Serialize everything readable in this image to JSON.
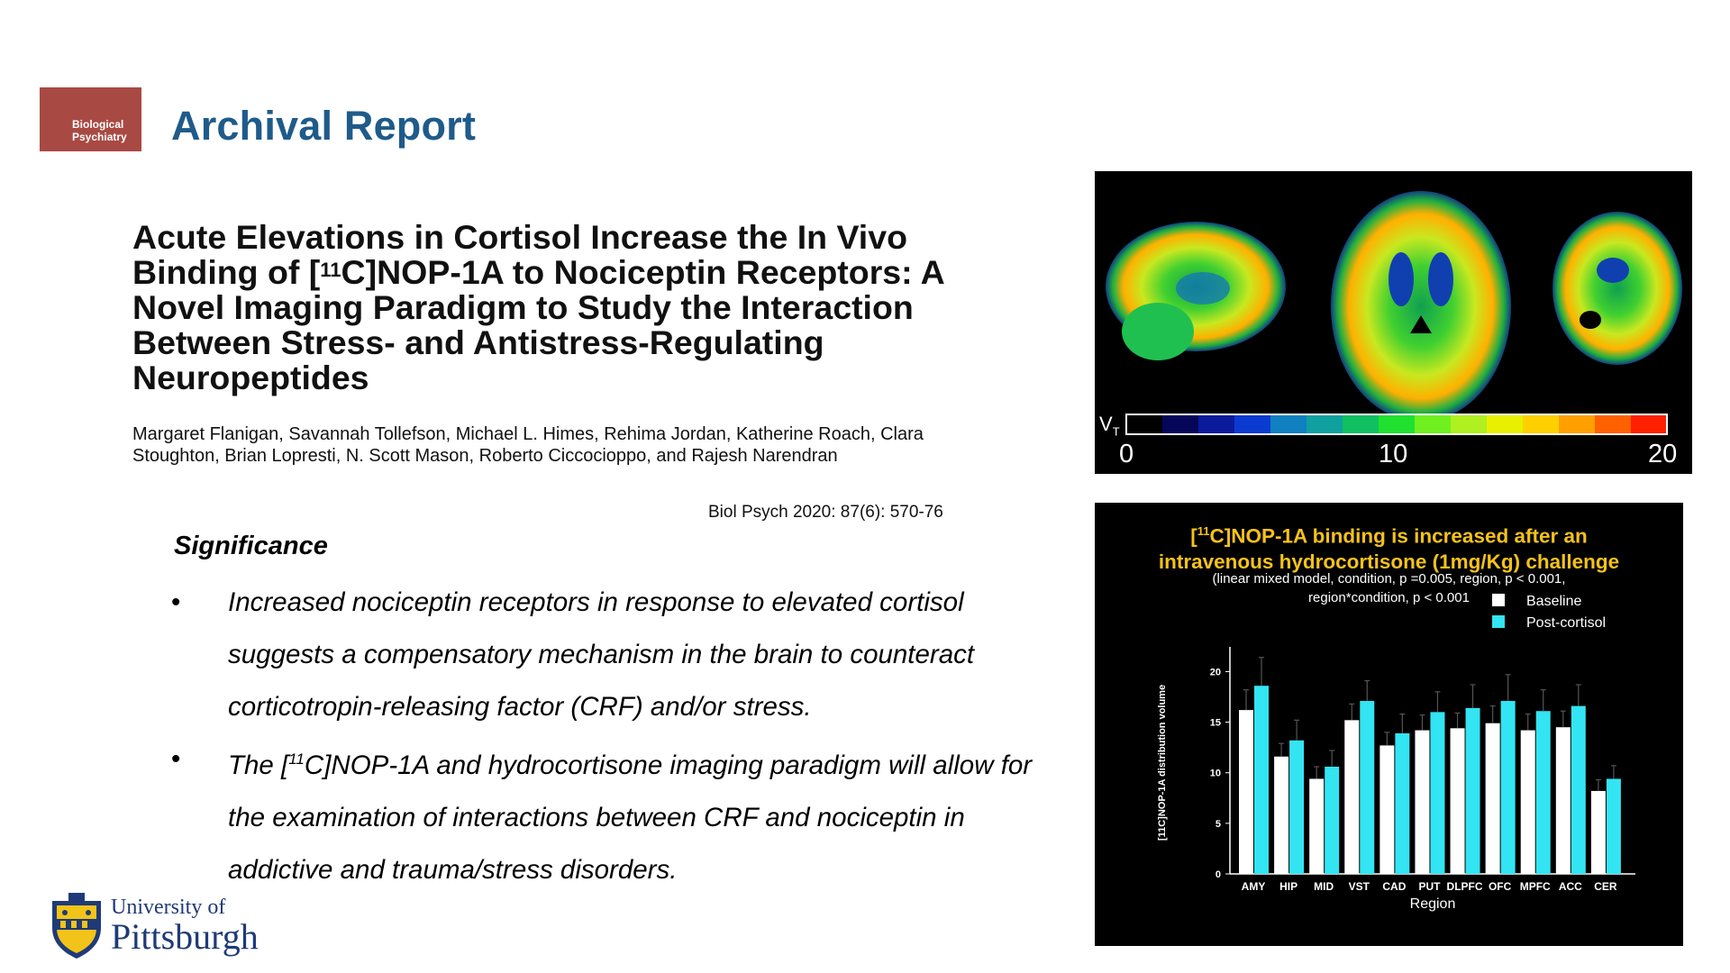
{
  "header": {
    "journal_logo_line1": "Biological",
    "journal_logo_line2": "Psychiatry",
    "report_type": "Archival Report"
  },
  "paper": {
    "title_part1": "Acute Elevations in Cortisol Increase the In Vivo Binding of [",
    "title_sup": "11",
    "title_part2": "C]NOP-1A to Nociceptin Receptors: A Novel Imaging Paradigm to Study the Interaction Between Stress- and Antistress-Regulating Neuropeptides",
    "authors": "Margaret Flanigan, Savannah Tollefson, Michael L. Himes, Rehima Jordan, Katherine Roach, Clara Stoughton, Brian Lopresti, N. Scott Mason, Roberto Ciccocioppo, and Rajesh Narendran",
    "citation": "Biol Psych 2020: 87(6): 570-76"
  },
  "significance": {
    "heading": "Significance",
    "bullet_symbol": "•",
    "bullet1": "Increased nociceptin receptors in response to elevated cortisol suggests a compensatory mechanism in the brain to counteract corticotropin-releasing factor (CRF) and/or stress.",
    "bullet2_part1": "The [",
    "bullet2_sup": "11",
    "bullet2_part2": "C]NOP-1A and hydrocortisone imaging paradigm will allow for the examination of interactions between CRF and nociceptin in addictive and trauma/stress disorders."
  },
  "institution": {
    "line1": "University of",
    "line2": "Pittsburgh"
  },
  "brain_figure": {
    "colorbar_label": "V",
    "colorbar_sub": "T",
    "colorbar_ticks": [
      "0",
      "10",
      "20"
    ],
    "colorbar_colors": [
      "#000000",
      "#05055a",
      "#0a1a9a",
      "#0a3ad0",
      "#1080c0",
      "#10a0a0",
      "#10c060",
      "#20e030",
      "#70f020",
      "#b0f020",
      "#e8f000",
      "#ffd000",
      "#ffa000",
      "#ff6000",
      "#ff2000"
    ]
  },
  "chart_data": {
    "type": "bar",
    "title_pre": "[",
    "title_sup": "11",
    "title_line1": "C]NOP-1A binding is increased after an",
    "title_line2": "intravenous hydrocortisone (1mg/Kg) challenge",
    "subtitle_line1": "(linear mixed model, condition, p =0.005, region, p < 0.001,",
    "subtitle_line2": "region*condition, p < 0.001",
    "xlabel": "Region",
    "ylabel": "[11C]NOP-1A distribution volume",
    "ylim": [
      0,
      22
    ],
    "yticks": [
      "0",
      "5",
      "10",
      "15",
      "20"
    ],
    "categories": [
      "AMY",
      "HIP",
      "MID",
      "VST",
      "CAD",
      "PUT",
      "DLPFC",
      "OFC",
      "MPFC",
      "ACC",
      "CER"
    ],
    "legend_position": "top-right",
    "series": [
      {
        "name": "Baseline",
        "color": "#ffffff",
        "values": [
          16.2,
          11.6,
          9.4,
          15.2,
          12.7,
          14.2,
          14.4,
          14.9,
          14.2,
          14.5,
          8.2
        ],
        "errors": [
          2.0,
          1.3,
          1.2,
          1.6,
          1.3,
          1.5,
          1.5,
          1.7,
          1.6,
          1.6,
          1.1
        ]
      },
      {
        "name": "Post-cortisol",
        "color": "#33e4f2",
        "values": [
          18.6,
          13.2,
          10.6,
          17.1,
          13.9,
          16.0,
          16.4,
          17.1,
          16.1,
          16.6,
          9.4
        ],
        "errors": [
          2.8,
          2.0,
          1.6,
          2.0,
          1.9,
          2.0,
          2.3,
          2.6,
          2.1,
          2.1,
          1.3
        ]
      }
    ]
  }
}
